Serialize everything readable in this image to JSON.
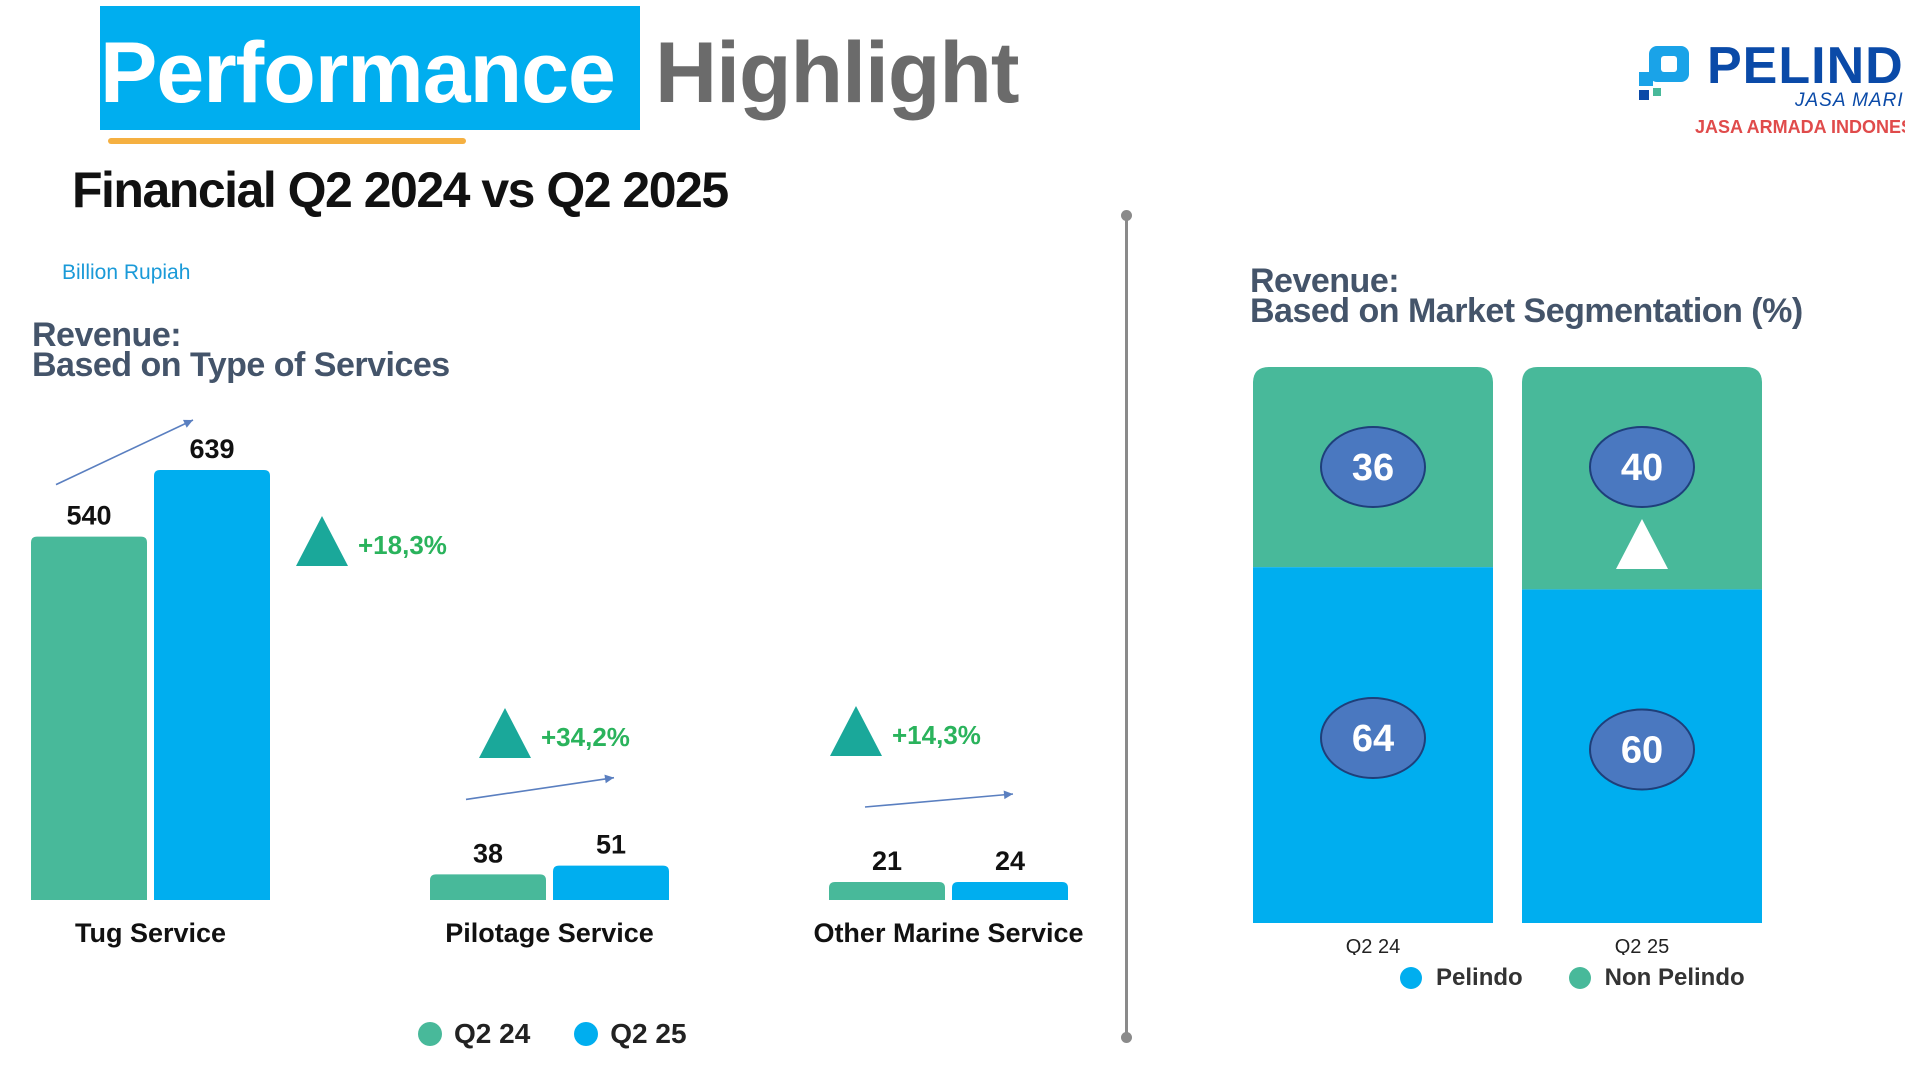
{
  "header": {
    "title_part1": "Performance",
    "title_part2": "Highlight",
    "subtitle": "Financial Q2 2024 vs Q2 2025",
    "unit_label": "Billion Rupiah"
  },
  "logo": {
    "name": "PELINDO",
    "line1": "JASA MARITIM",
    "line2": "JASA ARMADA INDONESIA"
  },
  "colors": {
    "q2_24": "#48b99a",
    "q2_25": "#00aeef",
    "growth": "#2ab35c",
    "triangle": "#1aa89a",
    "heading": "#44546a",
    "badge": "#4a78c0"
  },
  "left_section": {
    "heading_line1": "Revenue:",
    "heading_line2": "Based on Type of Services"
  },
  "right_section": {
    "heading_line1": "Revenue:",
    "heading_line2": "Based on Market Segmentation (%)"
  },
  "legend_services": {
    "q2_24": "Q2 24",
    "q2_25": "Q2 25"
  },
  "legend_segmentation": {
    "pelindo": "Pelindo",
    "non_pelindo": "Non Pelindo"
  },
  "chart_data": [
    {
      "type": "bar",
      "title": "Revenue: Based on Type of Services",
      "unit": "Billion Rupiah",
      "categories": [
        "Tug Service",
        "Pilotage Service",
        "Other Marine Service"
      ],
      "series": [
        {
          "name": "Q2 24",
          "values": [
            540,
            38,
            21
          ]
        },
        {
          "name": "Q2 25",
          "values": [
            639,
            51,
            24
          ]
        }
      ],
      "growth_labels": [
        "+18,3%",
        "+34,2%",
        "+14,3%"
      ],
      "ylim": [
        0,
        639
      ]
    },
    {
      "type": "bar",
      "stacked": true,
      "title": "Revenue: Based on Market Segmentation (%)",
      "categories": [
        "Q2 24",
        "Q2 25"
      ],
      "series": [
        {
          "name": "Pelindo",
          "values": [
            64,
            60
          ]
        },
        {
          "name": "Non Pelindo",
          "values": [
            36,
            40
          ]
        }
      ],
      "ylim": [
        0,
        100
      ]
    }
  ]
}
